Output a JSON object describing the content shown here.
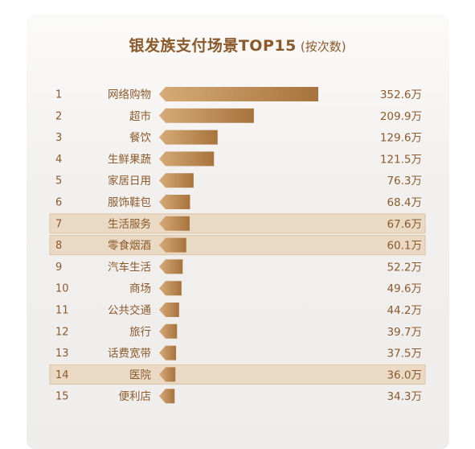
{
  "title": "银发族支付场景TOP15",
  "subtitle": "(按次数)",
  "colors": {
    "bar_left": "#d6ab78",
    "bar_right": "#a8733d",
    "text": "#8a5a2b",
    "highlight": "#ead9c4"
  },
  "chart_data": {
    "type": "bar",
    "orientation": "horizontal",
    "title": "银发族支付场景TOP15 (按次数)",
    "unit": "万",
    "ranks": [
      "1",
      "2",
      "3",
      "4",
      "5",
      "6",
      "7",
      "8",
      "9",
      "10",
      "11",
      "12",
      "13",
      "14",
      "15"
    ],
    "categories": [
      "网络购物",
      "超市",
      "餐饮",
      "生鲜果蔬",
      "家居日用",
      "服饰鞋包",
      "生活服务",
      "零食烟酒",
      "汽车生活",
      "商场",
      "公共交通",
      "旅行",
      "话费宽带",
      "医院",
      "便利店"
    ],
    "values": [
      352.6,
      209.9,
      129.6,
      121.5,
      76.3,
      68.4,
      67.6,
      60.1,
      52.2,
      49.6,
      44.2,
      39.7,
      37.5,
      36.0,
      34.3
    ],
    "value_labels": [
      "352.6万",
      "209.9万",
      "129.6万",
      "121.5万",
      "76.3万",
      "68.4万",
      "67.6万",
      "60.1万",
      "52.2万",
      "49.6万",
      "44.2万",
      "39.7万",
      "37.5万",
      "36.0万",
      "34.3万"
    ],
    "highlighted": [
      "生活服务",
      "零食烟酒",
      "医院"
    ]
  }
}
